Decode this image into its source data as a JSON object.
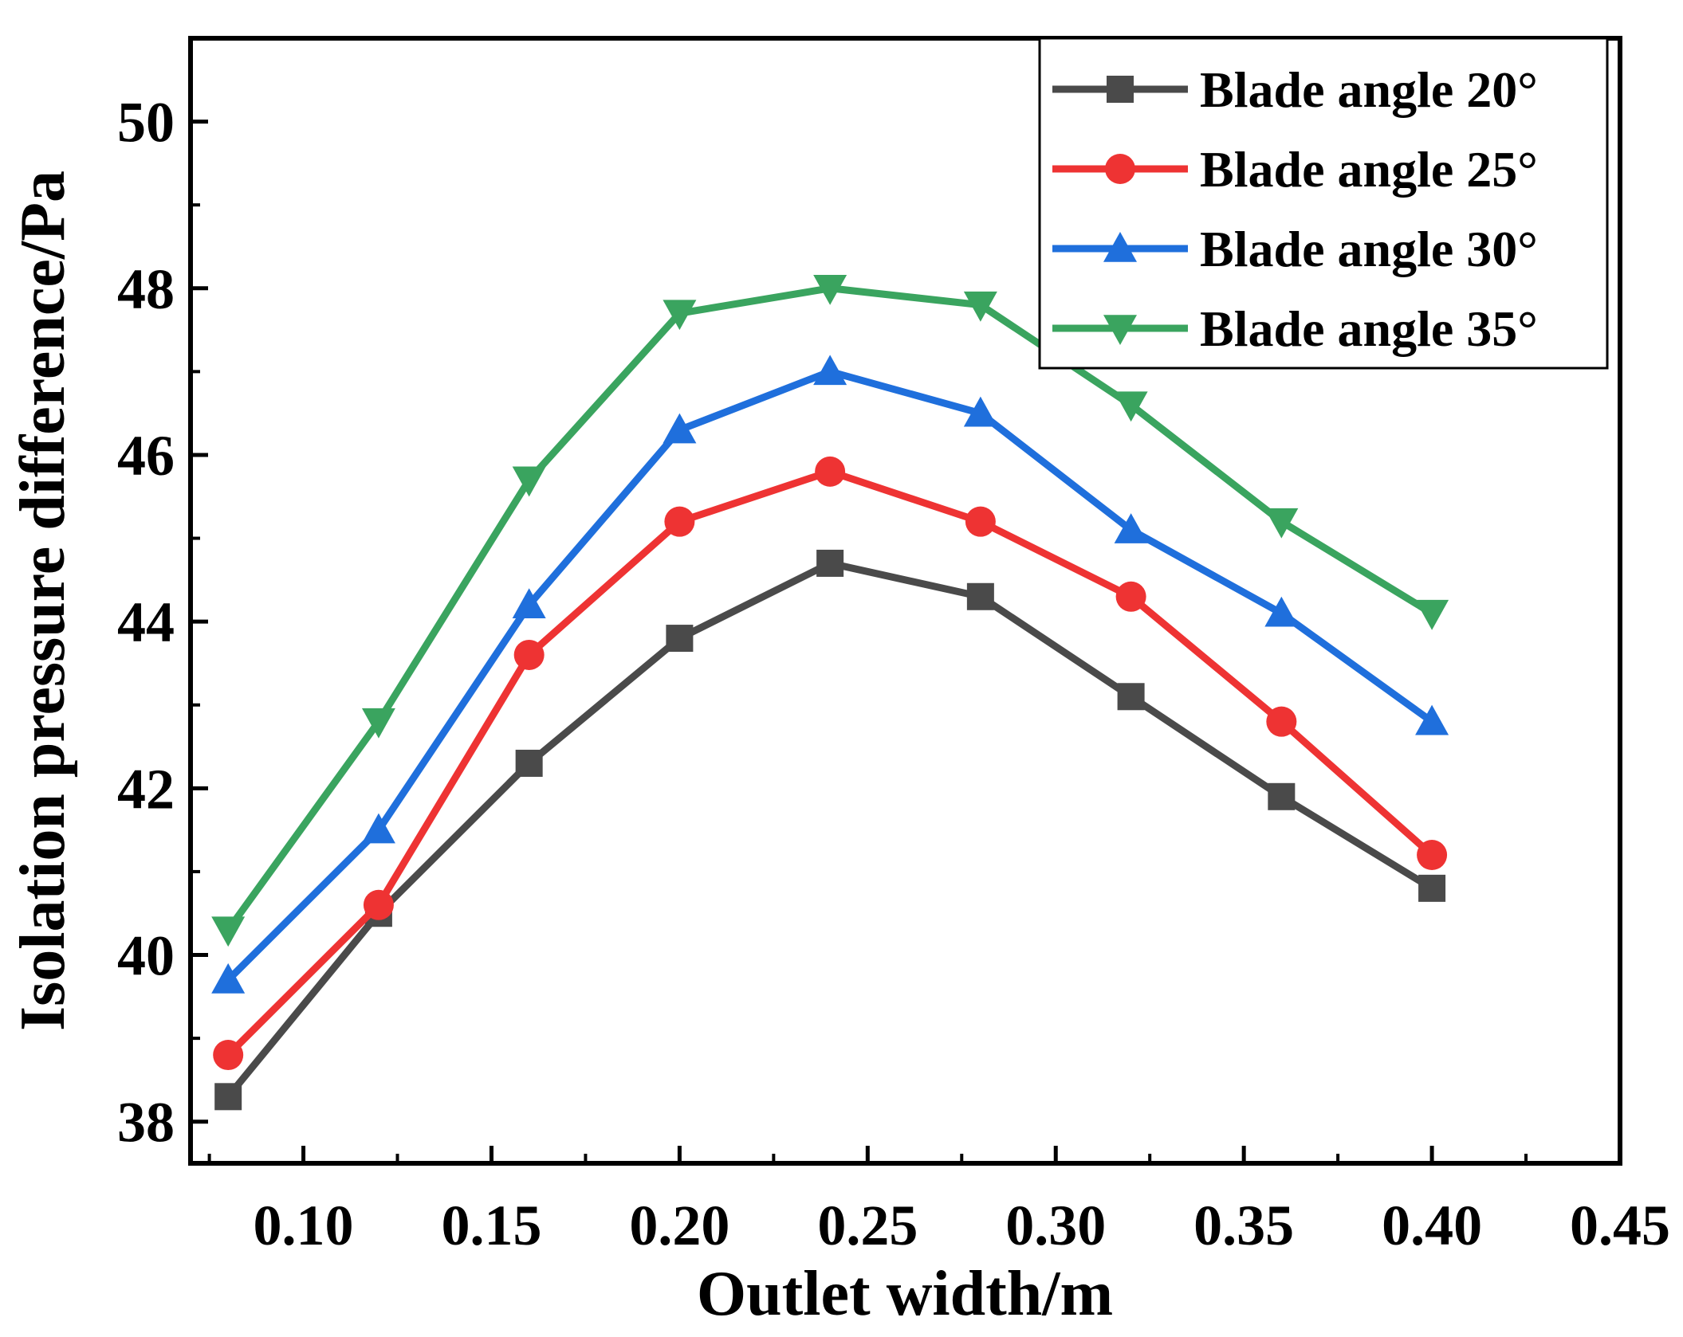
{
  "chart_data": {
    "type": "line",
    "title": "",
    "xlabel": "Outlet width/m",
    "ylabel": "Isolation pressure difference/Pa",
    "xlim": [
      0.07,
      0.45
    ],
    "ylim": [
      37.5,
      51.0
    ],
    "x_ticks": [
      0.1,
      0.15,
      0.2,
      0.25,
      0.3,
      0.35,
      0.4,
      0.45
    ],
    "x_tick_labels": [
      "0.10",
      "0.15",
      "0.20",
      "0.25",
      "0.30",
      "0.35",
      "0.40",
      "0.45"
    ],
    "y_ticks": [
      38,
      40,
      42,
      44,
      46,
      48,
      50
    ],
    "y_tick_labels": [
      "38",
      "40",
      "42",
      "44",
      "46",
      "48",
      "50"
    ],
    "grid": false,
    "legend_position": "top-right",
    "x": [
      0.08,
      0.12,
      0.16,
      0.2,
      0.24,
      0.28,
      0.32,
      0.36,
      0.4
    ],
    "series": [
      {
        "name": "Blade angle 20°",
        "color": "#4a4a4a",
        "marker": "square",
        "values": [
          38.3,
          40.5,
          42.3,
          43.8,
          44.7,
          44.3,
          43.1,
          41.9,
          40.8
        ]
      },
      {
        "name": "Blade angle 25°",
        "color": "#ee3333",
        "marker": "circle",
        "values": [
          38.8,
          40.6,
          43.6,
          45.2,
          45.8,
          45.2,
          44.3,
          42.8,
          41.2
        ]
      },
      {
        "name": "Blade angle 30°",
        "color": "#1f6fdc",
        "marker": "triangle-up",
        "values": [
          39.7,
          41.5,
          44.2,
          46.3,
          47.0,
          46.5,
          45.1,
          44.1,
          42.8
        ]
      },
      {
        "name": "Blade angle 35°",
        "color": "#3aa45f",
        "marker": "triangle-down",
        "values": [
          40.3,
          42.8,
          45.7,
          47.7,
          48.0,
          47.8,
          46.6,
          45.2,
          44.1
        ]
      }
    ]
  }
}
